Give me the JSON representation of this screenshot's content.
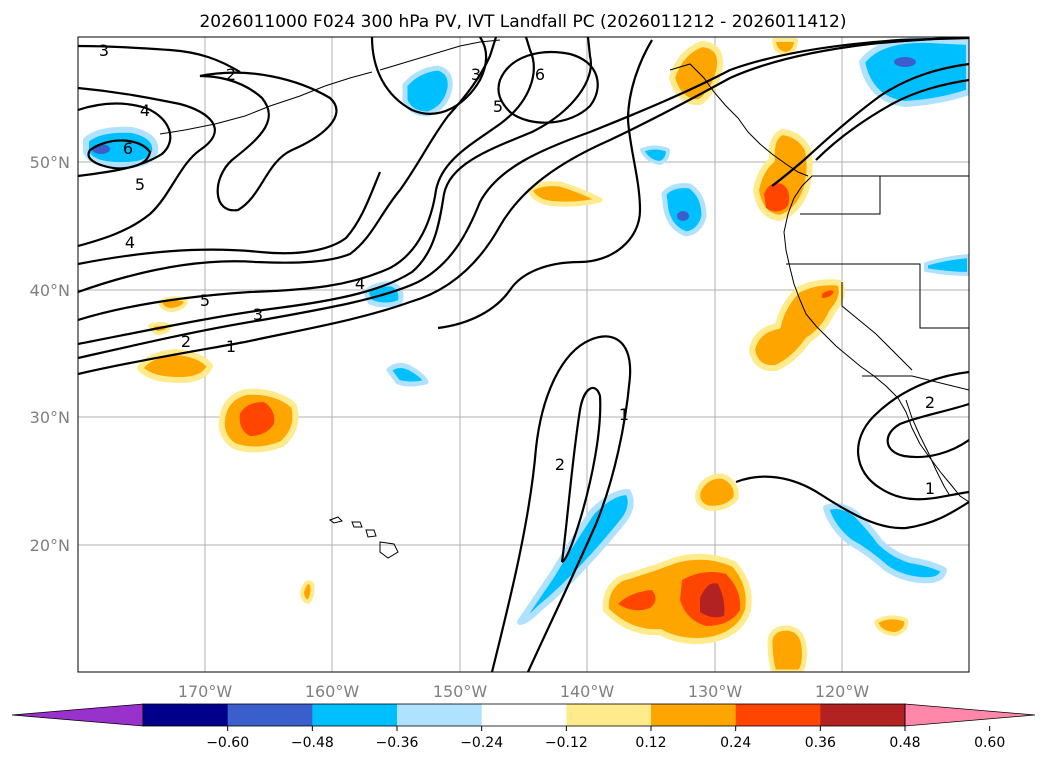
{
  "title": "2026011000 F024 300 hPa PV, IVT Landfall PC (2026011212 - 2026011412)",
  "lat_labels": [
    "50°N",
    "40°N",
    "30°N",
    "20°N"
  ],
  "lon_labels": [
    "170°W",
    "160°W",
    "150°W",
    "140°W",
    "130°W",
    "120°W"
  ],
  "colorbar": {
    "ticks": [
      "−0.60",
      "−0.48",
      "−0.36",
      "−0.24",
      "−0.12",
      "0.12",
      "0.24",
      "0.36",
      "0.48",
      "0.60"
    ],
    "colors": [
      "#9932cc",
      "#00008b",
      "#3a5fcd",
      "#00bfff",
      "#b0e2ff",
      "#ffffff",
      "#ffeb8b",
      "#ffa500",
      "#ff4500",
      "#b22222",
      "#ff88aa"
    ]
  },
  "contour_labels": {
    "c1": "3",
    "c2": "2",
    "c3": "4",
    "c4": "6",
    "c5": "5",
    "c6": "4",
    "c7": "3",
    "c8": "6",
    "c9": "5",
    "c10": "4",
    "c11": "5",
    "c12": "3",
    "c13": "2",
    "c14": "1",
    "c15": "2",
    "c16": "1",
    "c17": "2",
    "c18": "1"
  }
}
